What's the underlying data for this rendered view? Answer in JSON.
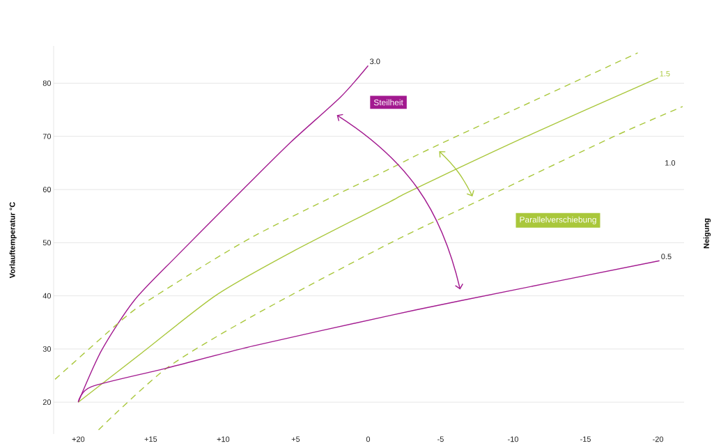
{
  "chart_data": {
    "type": "line",
    "ylabel": "Vorlauftemperatur °C",
    "y2label": "Neigung",
    "xlim": [
      21.7,
      -21.8
    ],
    "ylim": [
      14,
      87
    ],
    "xticks": [
      {
        "value": 20,
        "label": "+20"
      },
      {
        "value": 15,
        "label": "+15"
      },
      {
        "value": 10,
        "label": "+10"
      },
      {
        "value": 5,
        "label": "+5"
      },
      0,
      -5,
      -10,
      -15,
      -20
    ],
    "yticks": [
      20,
      30,
      40,
      50,
      60,
      70,
      80
    ],
    "grid": "y",
    "marker": "none",
    "series": [
      {
        "name": "3.0",
        "color": "#a2198f",
        "line_style": "solid",
        "x": [
          20,
          18.4,
          16.15,
          13.2,
          8.75,
          5.3,
          1.9,
          0
        ],
        "values": [
          20,
          29.7,
          39.1,
          47.5,
          59.7,
          69.0,
          77.4,
          83.3
        ]
      },
      {
        "name": "1.5",
        "color": "#a9c73b",
        "line_style": "solid",
        "x": [
          20,
          15.6,
          10.5,
          5.3,
          -1.5,
          -2.9,
          -10.7,
          -20
        ],
        "values": [
          20,
          29.3,
          40.1,
          48.2,
          57.7,
          59.7,
          69.7,
          81.0
        ]
      },
      {
        "color": "#a9c73b",
        "line_style": "dashed",
        "x": [
          21.6,
          16.8,
          14.6,
          7.9,
          -1.5,
          -5.0,
          -18.6
        ],
        "values": [
          24.3,
          35.9,
          40.1,
          51.2,
          63.9,
          68.6,
          85.7
        ]
      },
      {
        "color": "#a9c73b",
        "line_style": "dashed",
        "x": [
          18.6,
          13.9,
          7.9,
          -1.5,
          -8.1,
          -16.9,
          -21.7
        ],
        "values": [
          14.8,
          26.4,
          36.3,
          49.9,
          58.5,
          69.9,
          75.6
        ]
      },
      {
        "name": "0.5",
        "color": "#a2198f",
        "line_style": "solid",
        "x": [
          20,
          19.1,
          13.9,
          7.9,
          -1.5,
          -6.4,
          -20.1
        ],
        "values": [
          20,
          22.9,
          26.4,
          30.6,
          36.3,
          39.1,
          46.6
        ]
      }
    ],
    "annotations": [
      "Steilheit",
      "Parallelverschiebung",
      "1.0"
    ]
  }
}
